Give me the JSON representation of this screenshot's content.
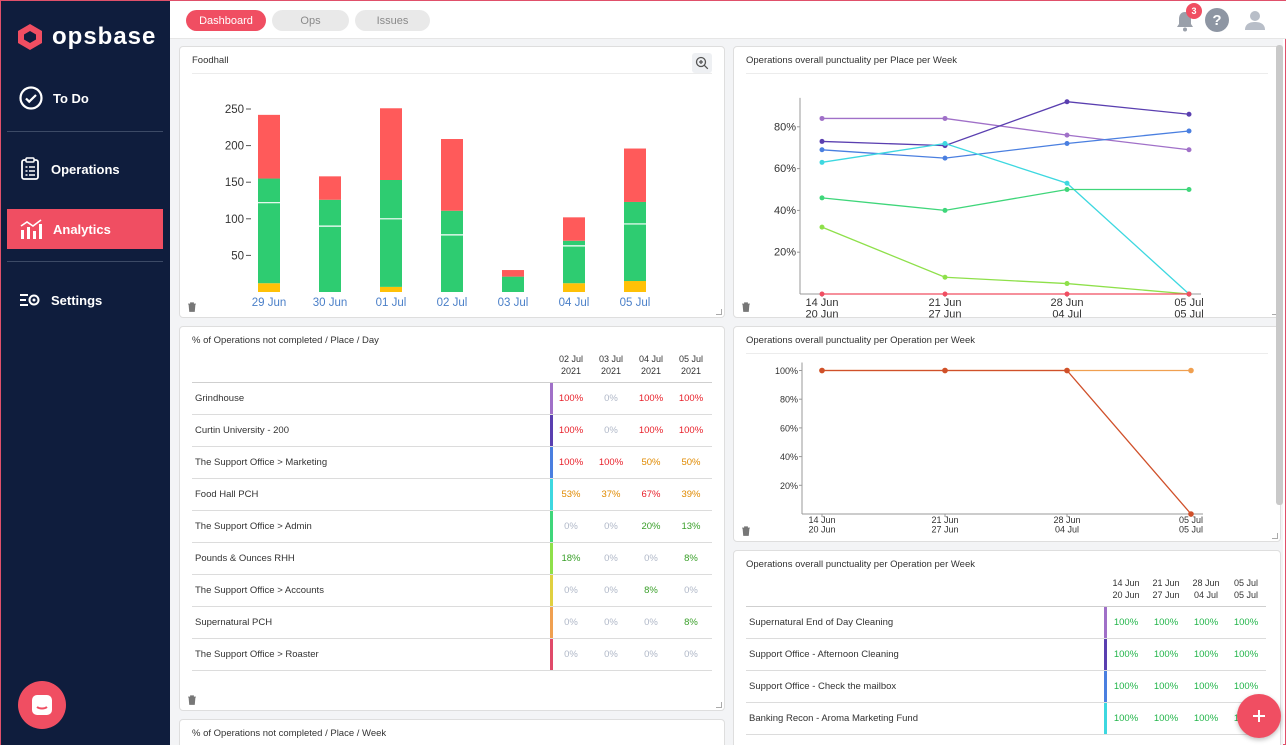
{
  "app": {
    "name": "opsbase"
  },
  "sidebar": {
    "items": [
      {
        "label": "To Do",
        "icon": "check-circle-icon"
      },
      {
        "label": "Operations",
        "icon": "clipboard-icon"
      },
      {
        "label": "Analytics",
        "icon": "bar-chart-icon"
      },
      {
        "label": "Settings",
        "icon": "settings-sliders-icon"
      }
    ]
  },
  "topbar": {
    "tabs": [
      "Dashboard",
      "Ops",
      "Issues"
    ],
    "notification_count": "3",
    "help_label": "?"
  },
  "colors": {
    "accent": "#f04e62",
    "sidebar_bg": "#0f1d3d",
    "green": "#2ecc71",
    "red": "#ff5a5a",
    "orange": "#e08a00"
  },
  "foodhall_card": {
    "title": "Foodhall",
    "chart_data": {
      "type": "bar",
      "categories": [
        "29 Jun",
        "30 Jun",
        "01 Jul",
        "02 Jul",
        "03 Jul",
        "04 Jul",
        "05 Jul"
      ],
      "series": [
        {
          "name": "yellow",
          "color": "#ffc107",
          "values": [
            12,
            0,
            7,
            0,
            0,
            12,
            15
          ]
        },
        {
          "name": "green",
          "color": "#2ecc71",
          "values": [
            143,
            126,
            146,
            111,
            21,
            58,
            108
          ]
        },
        {
          "name": "red",
          "color": "#ff5a5a",
          "values": [
            87,
            32,
            98,
            98,
            9,
            32,
            73
          ]
        }
      ],
      "white_marks": [
        122,
        90,
        100,
        78,
        0,
        63,
        93
      ],
      "yticks": [
        "50",
        "100",
        "150",
        "200",
        "250"
      ],
      "ylim": [
        0,
        250
      ]
    }
  },
  "place_week_card": {
    "title": "Operations overall punctuality per Place per Week",
    "chart_data": {
      "type": "line",
      "x_top": [
        "14 Jun",
        "21 Jun",
        "28 Jun",
        "05 Jul"
      ],
      "x_bottom": [
        "20 Jun",
        "27 Jun",
        "04 Jul",
        "05 Jul"
      ],
      "yticks": [
        "20%",
        "40%",
        "60%",
        "80%"
      ],
      "series": [
        {
          "color": "#a070c8",
          "values": [
            84,
            84,
            76,
            69
          ]
        },
        {
          "color": "#5a3fb0",
          "values": [
            73,
            71,
            92,
            86
          ]
        },
        {
          "color": "#4a7fe0",
          "values": [
            69,
            65,
            72,
            78
          ]
        },
        {
          "color": "#3dd8e0",
          "values": [
            63,
            72,
            53,
            0
          ]
        },
        {
          "color": "#3fd67a",
          "values": [
            46,
            40,
            50,
            50
          ]
        },
        {
          "color": "#8ee04a",
          "values": [
            32,
            8,
            5,
            0
          ]
        },
        {
          "color": "#f04e62",
          "values": [
            0,
            0,
            0,
            0
          ]
        }
      ]
    }
  },
  "op_week_chart_card": {
    "title": "Operations overall punctuality per Operation per Week",
    "chart_data": {
      "type": "line",
      "x_top": [
        "14 Jun",
        "21 Jun",
        "28 Jun",
        "05 Jul"
      ],
      "x_bottom": [
        "20 Jun",
        "27 Jun",
        "04 Jul",
        "05 Jul"
      ],
      "yticks": [
        "20%",
        "40%",
        "60%",
        "80%",
        "100%"
      ],
      "series": [
        {
          "color": "#f0a050",
          "values": [
            100,
            100,
            100,
            100
          ]
        },
        {
          "color": "#d0502a",
          "values": [
            100,
            100,
            100,
            0
          ]
        }
      ]
    }
  },
  "place_day_card": {
    "title": "% of Operations not completed / Place / Day",
    "headers": [
      [
        "02 Jul",
        "2021"
      ],
      [
        "03 Jul",
        "2021"
      ],
      [
        "04 Jul",
        "2021"
      ],
      [
        "05 Jul",
        "2021"
      ]
    ],
    "rows": [
      {
        "name": "Grindhouse",
        "bar": "#a070c8",
        "cells": [
          "100%",
          "0%",
          "100%",
          "100%"
        ],
        "colors": [
          "#e8202a",
          "#b0b8c8",
          "#e8202a",
          "#e8202a"
        ]
      },
      {
        "name": "Curtin University - 200",
        "bar": "#5a3fb0",
        "cells": [
          "100%",
          "0%",
          "100%",
          "100%"
        ],
        "colors": [
          "#e8202a",
          "#b0b8c8",
          "#e8202a",
          "#e8202a"
        ]
      },
      {
        "name": "The Support Office > Marketing",
        "bar": "#4a7fe0",
        "cells": [
          "100%",
          "100%",
          "50%",
          "50%"
        ],
        "colors": [
          "#e8202a",
          "#e8202a",
          "#e08a00",
          "#e08a00"
        ]
      },
      {
        "name": "Food Hall PCH",
        "bar": "#3dd8e0",
        "cells": [
          "53%",
          "37%",
          "67%",
          "39%"
        ],
        "colors": [
          "#e08a00",
          "#e08a00",
          "#e8202a",
          "#e08a00"
        ]
      },
      {
        "name": "The Support Office > Admin",
        "bar": "#3fd67a",
        "cells": [
          "0%",
          "0%",
          "20%",
          "13%"
        ],
        "colors": [
          "#b0b8c8",
          "#b0b8c8",
          "#3aa02a",
          "#3aa02a"
        ]
      },
      {
        "name": "Pounds & Ounces RHH",
        "bar": "#8ee04a",
        "cells": [
          "18%",
          "0%",
          "0%",
          "8%"
        ],
        "colors": [
          "#3aa02a",
          "#b0b8c8",
          "#b0b8c8",
          "#3aa02a"
        ]
      },
      {
        "name": "The Support Office > Accounts",
        "bar": "#e0d040",
        "cells": [
          "0%",
          "0%",
          "8%",
          "0%"
        ],
        "colors": [
          "#b0b8c8",
          "#b0b8c8",
          "#3aa02a",
          "#b0b8c8"
        ]
      },
      {
        "name": "Supernatural PCH",
        "bar": "#f0a050",
        "cells": [
          "0%",
          "0%",
          "0%",
          "8%"
        ],
        "colors": [
          "#b0b8c8",
          "#b0b8c8",
          "#b0b8c8",
          "#3aa02a"
        ]
      },
      {
        "name": "The Support Office > Roaster",
        "bar": "#e04a6a",
        "cells": [
          "0%",
          "0%",
          "0%",
          "0%"
        ],
        "colors": [
          "#b0b8c8",
          "#b0b8c8",
          "#b0b8c8",
          "#b0b8c8"
        ]
      }
    ]
  },
  "op_week_table_card": {
    "title": "Operations overall punctuality per Operation per Week",
    "headers": [
      [
        "14 Jun",
        "20 Jun"
      ],
      [
        "21 Jun",
        "27 Jun"
      ],
      [
        "28 Jun",
        "04 Jul"
      ],
      [
        "05 Jul",
        "05 Jul"
      ]
    ],
    "rows": [
      {
        "name": "Supernatural End of Day Cleaning",
        "bar": "#a070c8",
        "cells": [
          "100%",
          "100%",
          "100%",
          "100%"
        ]
      },
      {
        "name": "Support Office - Afternoon Cleaning",
        "bar": "#5a3fb0",
        "cells": [
          "100%",
          "100%",
          "100%",
          "100%"
        ]
      },
      {
        "name": "Support Office - Check the mailbox",
        "bar": "#4a7fe0",
        "cells": [
          "100%",
          "100%",
          "100%",
          "100%"
        ]
      },
      {
        "name": "Banking Recon - Aroma Marketing Fund",
        "bar": "#3dd8e0",
        "cells": [
          "100%",
          "100%",
          "100%",
          "100%"
        ]
      }
    ]
  },
  "place_week_table_card": {
    "title": "% of Operations not completed / Place / Week"
  }
}
